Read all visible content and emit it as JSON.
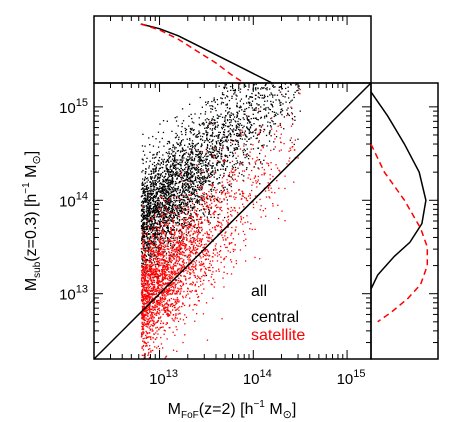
{
  "chart_data": {
    "type": "scatter",
    "xlabel": {
      "text": "M",
      "sub": "FoF",
      "rest": "(z=2)  [h",
      "sup": "−1",
      "end": " M",
      "sun": "⊙",
      "close": "]"
    },
    "ylabel": {
      "text": "M",
      "sub": "sub",
      "rest": "(z=0.3)  [h",
      "sup": "−1",
      "end": " M",
      "sun": "⊙",
      "close": "]"
    },
    "x_scale": "log",
    "y_scale": "log",
    "xlim": [
      2000000000000.0,
      1800000000000000.0
    ],
    "ylim": [
      2000000000000.0,
      1800000000000000.0
    ],
    "x_ticks": [
      {
        "value": 10000000000000.0,
        "base": "10",
        "exp": "13"
      },
      {
        "value": 100000000000000.0,
        "base": "10",
        "exp": "14"
      },
      {
        "value": 1000000000000000.0,
        "base": "10",
        "exp": "15"
      }
    ],
    "y_ticks": [
      {
        "value": 10000000000000.0,
        "base": "10",
        "exp": "13"
      },
      {
        "value": 100000000000000.0,
        "base": "10",
        "exp": "14"
      },
      {
        "value": 1000000000000000.0,
        "base": "10",
        "exp": "15"
      }
    ],
    "reference_line": {
      "label": "",
      "x": [
        2000000000000.0,
        1800000000000000.0
      ],
      "y": [
        2000000000000.0,
        1800000000000000.0
      ],
      "color": "#000000"
    },
    "legend": [
      {
        "label": "all",
        "color": "#000000"
      },
      {
        "label": "central",
        "color": "#000000"
      },
      {
        "label": "satellite",
        "color": "#ff0000"
      }
    ],
    "series": [
      {
        "name": "central",
        "color": "#000000",
        "x_log_min": 12.8,
        "x_log_peak": 13.3,
        "y_ratio_log_mean": 0.95,
        "y_ratio_log_sd": 0.3,
        "n_points": 3600
      },
      {
        "name": "satellite",
        "color": "#ff0000",
        "x_log_min": 12.8,
        "x_log_peak": 13.05,
        "y_ratio_log_mean": 0.15,
        "y_ratio_log_sd": 0.32,
        "n_points": 2600
      }
    ],
    "top_histogram": {
      "all": {
        "x_log": [
          12.8,
          13.0,
          13.2,
          13.4,
          13.6,
          13.8,
          14.0,
          14.2
        ],
        "density": [
          1.0,
          0.92,
          0.8,
          0.64,
          0.48,
          0.32,
          0.16,
          0.0
        ],
        "color": "#000000",
        "style": "solid"
      },
      "satellite": {
        "x_log": [
          12.8,
          13.0,
          13.2,
          13.4,
          13.6,
          13.75,
          13.9
        ],
        "density": [
          1.0,
          0.9,
          0.74,
          0.54,
          0.34,
          0.16,
          0.0
        ],
        "color": "#ff0000",
        "style": "dashed"
      }
    },
    "right_histogram": {
      "all": {
        "y_log": [
          15.16,
          14.9,
          14.6,
          14.3,
          14.0,
          13.75,
          13.55,
          13.4,
          13.2,
          13.05
        ],
        "density": [
          0.0,
          0.25,
          0.5,
          0.72,
          0.82,
          0.76,
          0.58,
          0.35,
          0.1,
          0.0
        ],
        "color": "#000000",
        "style": "solid"
      },
      "satellite": {
        "y_log": [
          14.6,
          14.3,
          14.0,
          13.7,
          13.5,
          13.3,
          13.1,
          12.95,
          12.8,
          12.7
        ],
        "density": [
          0.0,
          0.2,
          0.5,
          0.74,
          0.84,
          0.84,
          0.74,
          0.55,
          0.3,
          0.1
        ],
        "color": "#ff0000",
        "style": "dashed"
      }
    }
  }
}
